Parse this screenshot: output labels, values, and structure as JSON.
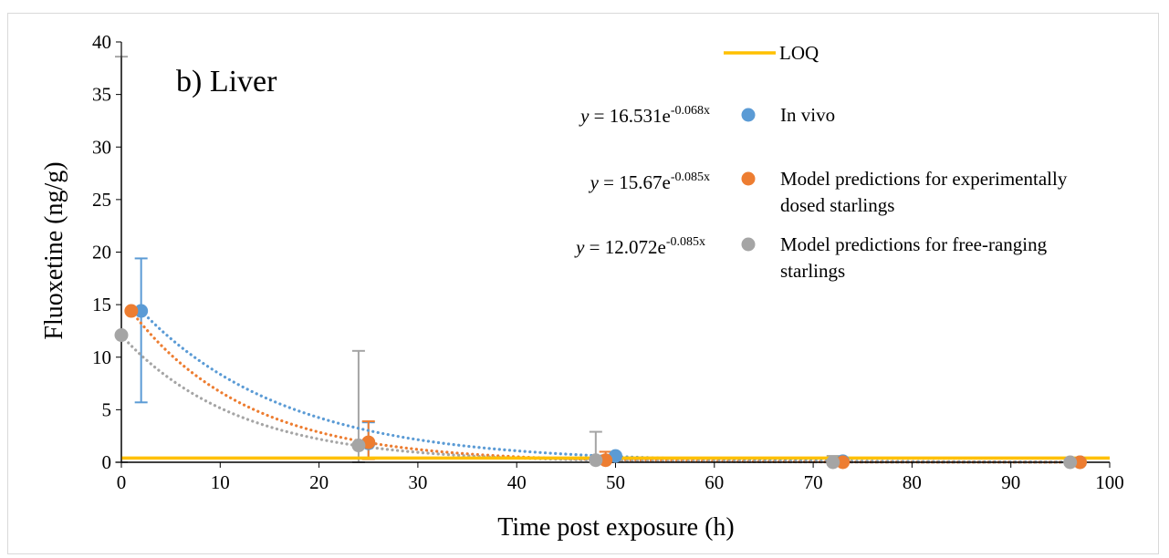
{
  "chart_data": {
    "type": "scatter",
    "panel_label": "b) Liver",
    "xlabel": "Time post exposure (h)",
    "ylabel": "Fluoxetine (ng/g)",
    "xlim": [
      0,
      100
    ],
    "ylim": [
      0,
      40
    ],
    "x_ticks": [
      "0",
      "10",
      "20",
      "30",
      "40",
      "50",
      "60",
      "70",
      "80",
      "90",
      "100"
    ],
    "y_ticks": [
      "0",
      "5",
      "10",
      "15",
      "20",
      "25",
      "30",
      "35",
      "40"
    ],
    "grid": false,
    "legend_position": "top-right",
    "loq": {
      "name": "LOQ",
      "value": 0.4,
      "color": "#FFC000"
    },
    "series": [
      {
        "name": "In vivo",
        "color": "#5B9BD5",
        "x": [
          2,
          25,
          50,
          73,
          97
        ],
        "y": [
          14.4,
          1.8,
          0.6,
          0.1,
          0.0
        ],
        "error_upper": [
          19.4,
          3.8,
          0.8,
          0.2,
          0.1
        ],
        "error_lower": [
          5.7,
          0.3,
          0.3,
          0.0,
          0.0
        ],
        "fit": {
          "a": 16.531,
          "b": -0.068,
          "label_prefix": "y",
          "label_main": " = 16.531e",
          "label_exp": "-0.068x"
        }
      },
      {
        "name": "Model predictions for experimentally dosed starlings",
        "legend_lines": [
          "Model predictions for experimentally",
          "dosed starlings"
        ],
        "color": "#ED7D31",
        "x": [
          1,
          25,
          49,
          73,
          97
        ],
        "y": [
          14.4,
          1.9,
          0.2,
          0.0,
          0.0
        ],
        "error_upper": [
          14.4,
          3.9,
          1.0,
          0.1,
          0.1
        ],
        "error_lower": [
          14.4,
          0.3,
          0.0,
          0.0,
          0.0
        ],
        "fit": {
          "a": 15.67,
          "b": -0.085,
          "label_prefix": "y",
          "label_main": " = 15.67e",
          "label_exp": "-0.085x"
        }
      },
      {
        "name": "Model predictions for free-ranging starlings",
        "legend_lines": [
          "Model predictions for free-ranging",
          "starlings"
        ],
        "color": "#A5A5A5",
        "x": [
          0,
          24,
          48,
          72,
          96
        ],
        "y": [
          12.1,
          1.6,
          0.2,
          0.0,
          0.0
        ],
        "error_upper": [
          38.6,
          10.6,
          2.9,
          0.6,
          0.1
        ],
        "error_lower": [
          0.0,
          0.0,
          0.0,
          0.0,
          0.0
        ],
        "fit": {
          "a": 12.072,
          "b": -0.085,
          "label_prefix": "y",
          "label_main": " = 12.072e",
          "label_exp": "-0.085x"
        }
      }
    ]
  }
}
